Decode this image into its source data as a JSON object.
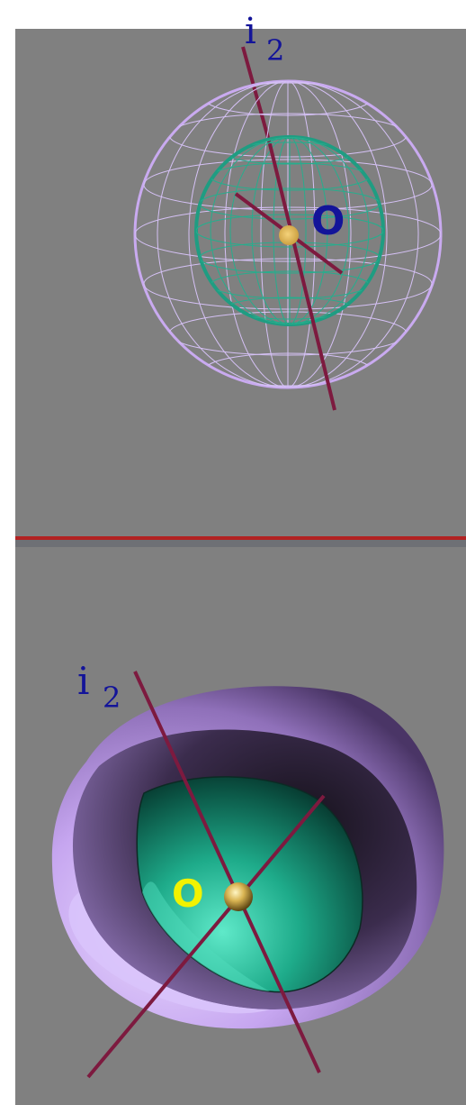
{
  "colors": {
    "page_bg": "#ffffff",
    "panel_bg": "#808080",
    "divider_red": "#b22222",
    "divider_gray": "#6e7075",
    "axis": "#7d1a3f",
    "outer_sphere": "#c9aaf0",
    "inner_sphere": "#1f9d82",
    "center_point": "#e8c457",
    "label_blue": "#131499",
    "label_yellow": "#f2f200"
  },
  "top_panel": {
    "axis_label": "i",
    "axis_label_sub": "2",
    "center_label": "O"
  },
  "bottom_panel": {
    "axis_label": "i",
    "axis_label_sub": "2",
    "center_label": "O"
  }
}
